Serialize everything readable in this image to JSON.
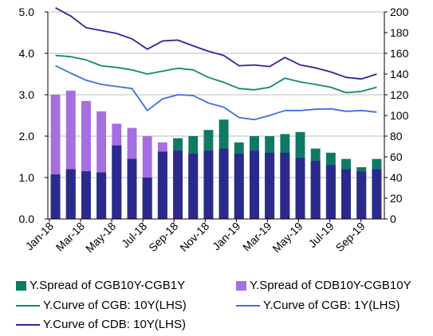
{
  "chart_data": {
    "type": "bar+line",
    "left_axis": {
      "range": [
        0.0,
        5.0
      ],
      "ticks": [
        "0.0",
        "1.0",
        "2.0",
        "3.0",
        "4.0",
        "5.0"
      ]
    },
    "right_axis": {
      "range": [
        0,
        200
      ],
      "ticks": [
        "0",
        "20",
        "40",
        "60",
        "80",
        "100",
        "120",
        "140",
        "160",
        "180",
        "200"
      ]
    },
    "x_ticks": [
      "Jan-18",
      "Mar-18",
      "May-18",
      "Jul-18",
      "Sep-18",
      "Nov-18",
      "Jan-19",
      "Mar-19",
      "May-19",
      "Jul-19",
      "Sep-19"
    ],
    "legend_position": "bottom",
    "series": [
      {
        "name": "Y.Spread of CGB10Y-CGB1Y",
        "type": "bar",
        "color": "#0e7a66",
        "axis": "right",
        "x": [
          "Jan-18",
          "Feb-18",
          "Mar-18",
          "Apr-18",
          "May-18",
          "Jun-18",
          "Jul-18",
          "Aug-18",
          "Sep-18",
          "Oct-18",
          "Nov-18",
          "Dec-18",
          "Jan-19",
          "Feb-19",
          "Mar-19",
          "Apr-19",
          "May-19",
          "Jun-19",
          "Jul-19",
          "Aug-19",
          "Sep-19",
          "Oct-19"
        ],
        "values": [
          43,
          48,
          46,
          45,
          71,
          58,
          40,
          65,
          78,
          80,
          86,
          96,
          74,
          80,
          80,
          82,
          84,
          68,
          64,
          58,
          50,
          58
        ]
      },
      {
        "name": "Y.Spread of CDB10Y-CGB10Y",
        "type": "bar",
        "color": "#a66fe0",
        "axis": "right",
        "x": [
          "Jan-18",
          "Feb-18",
          "Mar-18",
          "Apr-18",
          "May-18",
          "Jun-18",
          "Jul-18",
          "Aug-18",
          "Sep-18",
          "Oct-18",
          "Nov-18",
          "Dec-18",
          "Jan-19",
          "Feb-19",
          "Mar-19",
          "Apr-19",
          "May-19",
          "Jun-19",
          "Jul-19",
          "Aug-19",
          "Sep-19",
          "Oct-19"
        ],
        "values": [
          120,
          124,
          114,
          104,
          92,
          88,
          80,
          74,
          66,
          63,
          66,
          68,
          63,
          66,
          64,
          64,
          59,
          56,
          52,
          48,
          46,
          48
        ]
      },
      {
        "name": "Y.Curve of CGB: 10Y(LHS)",
        "type": "line",
        "color": "#0e8a74",
        "axis": "left",
        "x": [
          "Jan-18",
          "Feb-18",
          "Mar-18",
          "Apr-18",
          "May-18",
          "Jun-18",
          "Jul-18",
          "Aug-18",
          "Sep-18",
          "Oct-18",
          "Nov-18",
          "Dec-18",
          "Jan-19",
          "Feb-19",
          "Mar-19",
          "Apr-19",
          "May-19",
          "Jun-19",
          "Jul-19",
          "Aug-19",
          "Sep-19",
          "Oct-19"
        ],
        "values": [
          3.95,
          3.92,
          3.84,
          3.7,
          3.66,
          3.6,
          3.5,
          3.57,
          3.64,
          3.6,
          3.42,
          3.3,
          3.15,
          3.12,
          3.18,
          3.4,
          3.31,
          3.25,
          3.18,
          3.05,
          3.08,
          3.18
        ]
      },
      {
        "name": "Y.Curve of CGB: 1Y(LHS)",
        "type": "line",
        "color": "#3f6ee8",
        "axis": "left",
        "x": [
          "Jan-18",
          "Feb-18",
          "Mar-18",
          "Apr-18",
          "May-18",
          "Jun-18",
          "Jul-18",
          "Aug-18",
          "Sep-18",
          "Oct-18",
          "Nov-18",
          "Dec-18",
          "Jan-19",
          "Feb-19",
          "Mar-19",
          "Apr-19",
          "May-19",
          "Jun-19",
          "Jul-19",
          "Aug-19",
          "Sep-19",
          "Oct-19"
        ],
        "values": [
          3.7,
          3.52,
          3.35,
          3.25,
          3.2,
          3.15,
          2.62,
          2.9,
          3.0,
          2.98,
          2.8,
          2.7,
          2.45,
          2.4,
          2.5,
          2.62,
          2.62,
          2.65,
          2.66,
          2.6,
          2.62,
          2.58
        ]
      },
      {
        "name": "Y.Curve of CDB: 10Y(LHS)",
        "type": "line",
        "color": "#3c1e96",
        "axis": "left",
        "x": [
          "Jan-18",
          "Feb-18",
          "Mar-18",
          "Apr-18",
          "May-18",
          "Jun-18",
          "Jul-18",
          "Aug-18",
          "Sep-18",
          "Oct-18",
          "Nov-18",
          "Dec-18",
          "Jan-19",
          "Feb-19",
          "Mar-19",
          "Apr-19",
          "May-19",
          "Jun-19",
          "Jul-19",
          "Aug-19",
          "Sep-19",
          "Oct-19"
        ],
        "values": [
          5.1,
          4.9,
          4.62,
          4.55,
          4.48,
          4.35,
          4.1,
          4.3,
          4.32,
          4.18,
          4.05,
          3.95,
          3.7,
          3.72,
          3.68,
          3.9,
          3.72,
          3.65,
          3.55,
          3.42,
          3.38,
          3.5
        ]
      }
    ]
  }
}
